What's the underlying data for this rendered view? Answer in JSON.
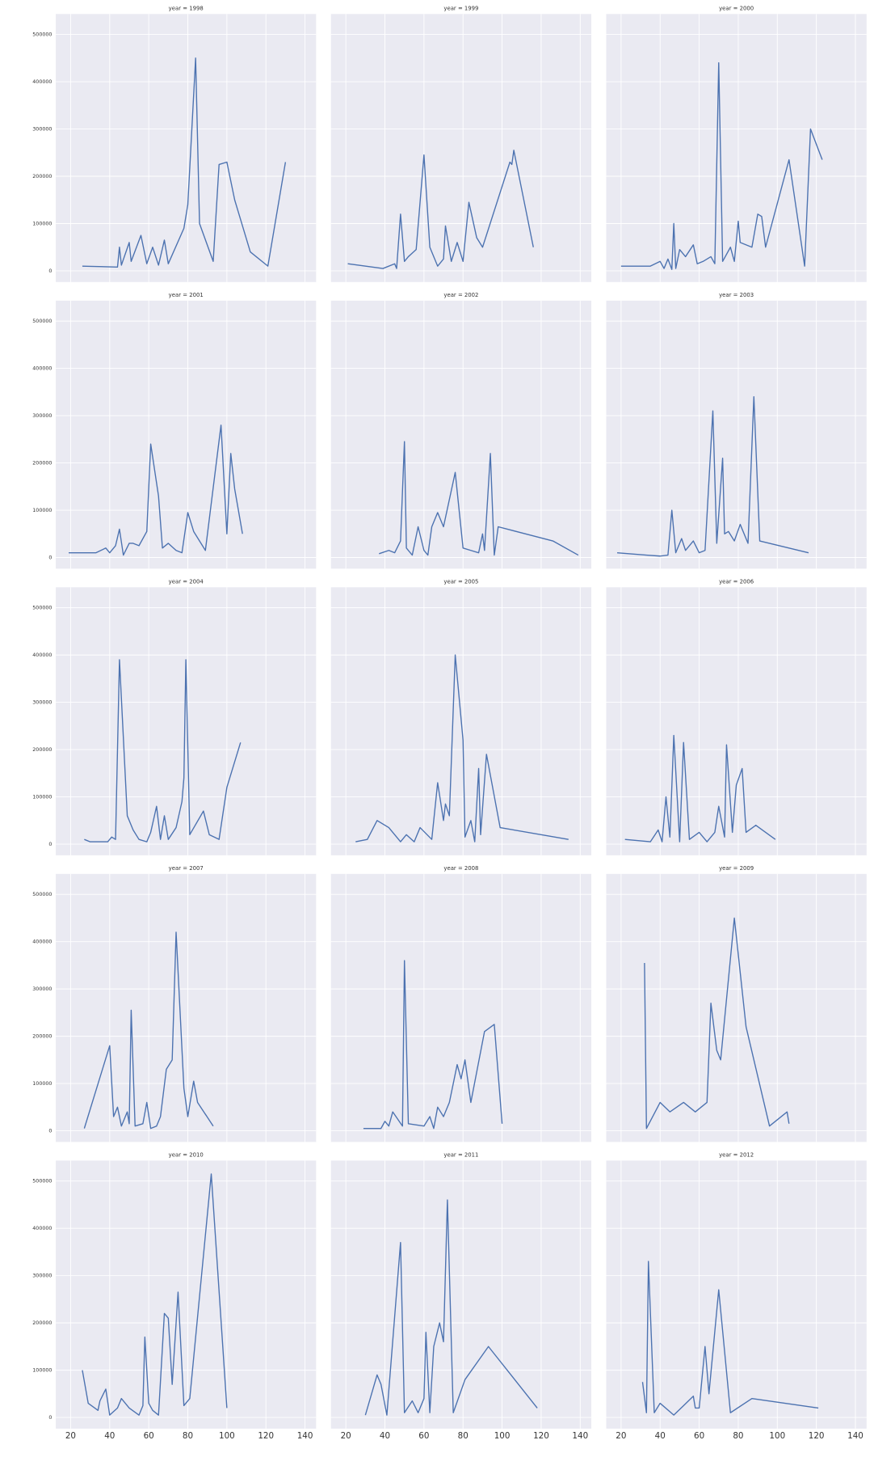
{
  "chart_data": [
    {
      "type": "line",
      "title": "year = 1998",
      "color": "#4c72b0",
      "xlim": [
        12.4,
        145.7
      ],
      "ylim": [
        -23600,
        543300
      ],
      "xticks": [
        20,
        40,
        60,
        80,
        100,
        120,
        140
      ],
      "yticks": [
        0,
        100000,
        200000,
        300000,
        400000,
        500000
      ],
      "grid": true,
      "x": [
        26,
        44,
        45,
        46,
        50,
        51,
        56,
        59,
        62,
        65,
        68,
        70,
        78,
        80,
        84,
        86,
        93,
        96,
        100,
        104,
        112,
        121,
        130
      ],
      "values": [
        10000,
        8000,
        50000,
        12000,
        60000,
        20000,
        75000,
        15000,
        50000,
        12000,
        65000,
        15000,
        90000,
        140000,
        450000,
        100000,
        20000,
        225000,
        230000,
        150000,
        40000,
        10000,
        230000
      ]
    },
    {
      "type": "line",
      "title": "year = 1999",
      "color": "#4c72b0",
      "xlim": [
        12.4,
        145.7
      ],
      "ylim": [
        -23600,
        543300
      ],
      "xticks": [
        20,
        40,
        60,
        80,
        100,
        120,
        140
      ],
      "yticks": [
        0,
        100000,
        200000,
        300000,
        400000,
        500000
      ],
      "grid": true,
      "x": [
        21,
        39,
        45,
        46,
        48,
        50,
        52,
        56,
        60,
        63,
        67,
        70,
        71,
        74,
        77,
        80,
        83,
        87,
        90,
        104,
        105,
        106,
        116
      ],
      "values": [
        15000,
        5000,
        15000,
        5000,
        120000,
        20000,
        30000,
        45000,
        245000,
        50000,
        10000,
        25000,
        95000,
        20000,
        60000,
        20000,
        145000,
        70000,
        50000,
        230000,
        225000,
        255000,
        50000
      ]
    },
    {
      "type": "line",
      "title": "year = 2000",
      "color": "#4c72b0",
      "xlim": [
        12.4,
        145.7
      ],
      "ylim": [
        -23600,
        543300
      ],
      "xticks": [
        20,
        40,
        60,
        80,
        100,
        120,
        140
      ],
      "yticks": [
        0,
        100000,
        200000,
        300000,
        400000,
        500000
      ],
      "grid": true,
      "x": [
        20,
        35,
        40,
        42,
        44,
        46,
        47,
        48,
        50,
        53,
        57,
        59,
        62,
        66,
        68,
        70,
        72,
        76,
        78,
        80,
        81,
        87,
        90,
        92,
        94,
        106,
        114,
        117,
        123
      ],
      "values": [
        10000,
        10000,
        20000,
        5000,
        25000,
        3000,
        100000,
        5000,
        45000,
        30000,
        55000,
        15000,
        20000,
        30000,
        15000,
        440000,
        20000,
        50000,
        20000,
        105000,
        60000,
        50000,
        120000,
        115000,
        50000,
        235000,
        10000,
        300000,
        235000
      ]
    },
    {
      "type": "line",
      "title": "year = 2001",
      "color": "#4c72b0",
      "xlim": [
        12.4,
        145.7
      ],
      "ylim": [
        -23600,
        543300
      ],
      "xticks": [
        20,
        40,
        60,
        80,
        100,
        120,
        140
      ],
      "yticks": [
        0,
        100000,
        200000,
        300000,
        400000,
        500000
      ],
      "grid": true,
      "x": [
        19,
        33,
        38,
        40,
        43,
        45,
        47,
        50,
        52,
        55,
        59,
        61,
        65,
        67,
        70,
        74,
        77,
        80,
        83,
        89,
        97,
        100,
        102,
        104,
        108
      ],
      "values": [
        10000,
        10000,
        20000,
        10000,
        25000,
        60000,
        5000,
        30000,
        30000,
        25000,
        55000,
        240000,
        130000,
        20000,
        30000,
        15000,
        10000,
        95000,
        55000,
        15000,
        280000,
        50000,
        220000,
        145000,
        50000
      ]
    },
    {
      "type": "line",
      "title": "year = 2002",
      "color": "#4c72b0",
      "xlim": [
        12.4,
        145.7
      ],
      "ylim": [
        -23600,
        543300
      ],
      "xticks": [
        20,
        40,
        60,
        80,
        100,
        120,
        140
      ],
      "yticks": [
        0,
        100000,
        200000,
        300000,
        400000,
        500000
      ],
      "grid": true,
      "x": [
        37,
        42,
        45,
        48,
        50,
        51,
        54,
        57,
        60,
        62,
        64,
        67,
        70,
        76,
        80,
        84,
        88,
        90,
        91,
        94,
        96,
        98,
        126,
        139
      ],
      "values": [
        8000,
        15000,
        10000,
        35000,
        245000,
        20000,
        5000,
        65000,
        15000,
        5000,
        65000,
        95000,
        65000,
        180000,
        20000,
        15000,
        10000,
        50000,
        15000,
        220000,
        5000,
        65000,
        35000,
        5000
      ]
    },
    {
      "type": "line",
      "title": "year = 2003",
      "color": "#4c72b0",
      "xlim": [
        12.4,
        145.7
      ],
      "ylim": [
        -23600,
        543300
      ],
      "xticks": [
        20,
        40,
        60,
        80,
        100,
        120,
        140
      ],
      "yticks": [
        0,
        100000,
        200000,
        300000,
        400000,
        500000
      ],
      "grid": true,
      "x": [
        18,
        33,
        40,
        44,
        46,
        48,
        51,
        53,
        57,
        60,
        63,
        67,
        69,
        72,
        73,
        75,
        78,
        81,
        85,
        88,
        91,
        116
      ],
      "values": [
        10000,
        5000,
        3000,
        5000,
        100000,
        10000,
        40000,
        15000,
        35000,
        10000,
        15000,
        310000,
        30000,
        210000,
        50000,
        55000,
        35000,
        70000,
        30000,
        340000,
        35000,
        10000
      ]
    },
    {
      "type": "line",
      "title": "year = 2004",
      "color": "#4c72b0",
      "xlim": [
        12.4,
        145.7
      ],
      "ylim": [
        -23600,
        543300
      ],
      "xticks": [
        20,
        40,
        60,
        80,
        100,
        120,
        140
      ],
      "yticks": [
        0,
        100000,
        200000,
        300000,
        400000,
        500000
      ],
      "grid": true,
      "x": [
        27,
        30,
        39,
        41,
        43,
        45,
        49,
        52,
        55,
        59,
        61,
        64,
        66,
        68,
        70,
        74,
        77,
        78,
        79,
        81,
        88,
        91,
        96,
        100,
        107
      ],
      "values": [
        10000,
        5000,
        5000,
        15000,
        10000,
        390000,
        60000,
        30000,
        10000,
        5000,
        25000,
        80000,
        10000,
        60000,
        10000,
        35000,
        90000,
        140000,
        390000,
        20000,
        70000,
        20000,
        10000,
        120000,
        215000
      ]
    },
    {
      "type": "line",
      "title": "year = 2005",
      "color": "#4c72b0",
      "xlim": [
        12.4,
        145.7
      ],
      "ylim": [
        -23600,
        543300
      ],
      "xticks": [
        20,
        40,
        60,
        80,
        100,
        120,
        140
      ],
      "yticks": [
        0,
        100000,
        200000,
        300000,
        400000,
        500000
      ],
      "grid": true,
      "x": [
        25,
        31,
        36,
        42,
        45,
        48,
        51,
        55,
        58,
        64,
        67,
        70,
        71,
        73,
        76,
        80,
        81,
        84,
        86,
        88,
        89,
        92,
        99,
        134
      ],
      "values": [
        5000,
        10000,
        50000,
        35000,
        20000,
        5000,
        20000,
        5000,
        35000,
        10000,
        130000,
        50000,
        85000,
        60000,
        400000,
        220000,
        15000,
        50000,
        5000,
        160000,
        20000,
        190000,
        35000,
        10000
      ]
    },
    {
      "type": "line",
      "title": "year = 2006",
      "color": "#4c72b0",
      "xlim": [
        12.4,
        145.7
      ],
      "ylim": [
        -23600,
        543300
      ],
      "xticks": [
        20,
        40,
        60,
        80,
        100,
        120,
        140
      ],
      "yticks": [
        0,
        100000,
        200000,
        300000,
        400000,
        500000
      ],
      "grid": true,
      "x": [
        22,
        35,
        39,
        41,
        43,
        45,
        47,
        50,
        52,
        55,
        60,
        64,
        68,
        70,
        73,
        74,
        77,
        79,
        82,
        84,
        89,
        99
      ],
      "values": [
        10000,
        5000,
        30000,
        5000,
        100000,
        15000,
        230000,
        5000,
        215000,
        10000,
        25000,
        5000,
        25000,
        80000,
        15000,
        210000,
        25000,
        125000,
        160000,
        25000,
        40000,
        10000
      ]
    },
    {
      "type": "line",
      "title": "year = 2007",
      "color": "#4c72b0",
      "xlim": [
        12.4,
        145.7
      ],
      "ylim": [
        -23600,
        543300
      ],
      "xticks": [
        20,
        40,
        60,
        80,
        100,
        120,
        140
      ],
      "yticks": [
        0,
        100000,
        200000,
        300000,
        400000,
        500000
      ],
      "grid": true,
      "x": [
        27,
        40,
        42,
        44,
        46,
        49,
        50,
        51,
        53,
        57,
        59,
        61,
        64,
        66,
        69,
        72,
        74,
        78,
        80,
        83,
        85,
        93
      ],
      "values": [
        5000,
        180000,
        30000,
        50000,
        10000,
        40000,
        15000,
        255000,
        10000,
        15000,
        60000,
        5000,
        10000,
        30000,
        130000,
        150000,
        420000,
        90000,
        30000,
        105000,
        60000,
        10000
      ]
    },
    {
      "type": "line",
      "title": "year = 2008",
      "color": "#4c72b0",
      "xlim": [
        12.4,
        145.7
      ],
      "ylim": [
        -23600,
        543300
      ],
      "xticks": [
        20,
        40,
        60,
        80,
        100,
        120,
        140
      ],
      "yticks": [
        0,
        100000,
        200000,
        300000,
        400000,
        500000
      ],
      "grid": true,
      "x": [
        29,
        38,
        40,
        42,
        44,
        49,
        50,
        52,
        60,
        63,
        65,
        67,
        70,
        73,
        77,
        79,
        81,
        84,
        91,
        96,
        100
      ],
      "values": [
        5000,
        5000,
        20000,
        10000,
        40000,
        10000,
        360000,
        15000,
        10000,
        30000,
        5000,
        50000,
        30000,
        60000,
        140000,
        110000,
        150000,
        60000,
        210000,
        225000,
        15000
      ]
    },
    {
      "type": "line",
      "title": "year = 2009",
      "color": "#4c72b0",
      "xlim": [
        12.4,
        145.7
      ],
      "ylim": [
        -23600,
        543300
      ],
      "xticks": [
        20,
        40,
        60,
        80,
        100,
        120,
        140
      ],
      "yticks": [
        0,
        100000,
        200000,
        300000,
        400000,
        500000
      ],
      "grid": true,
      "x": [
        32,
        33,
        40,
        45,
        52,
        58,
        64,
        66,
        69,
        71,
        78,
        84,
        96,
        105,
        106
      ],
      "values": [
        355000,
        5000,
        60000,
        40000,
        60000,
        40000,
        60000,
        270000,
        170000,
        150000,
        450000,
        220000,
        10000,
        40000,
        15000
      ]
    },
    {
      "type": "line",
      "title": "year = 2010",
      "color": "#4c72b0",
      "xlim": [
        12.4,
        145.7
      ],
      "ylim": [
        -23600,
        543300
      ],
      "xticks": [
        20,
        40,
        60,
        80,
        100,
        120,
        140
      ],
      "yticks": [
        0,
        100000,
        200000,
        300000,
        400000,
        500000
      ],
      "grid": true,
      "x": [
        26,
        29,
        34,
        35,
        38,
        40,
        44,
        46,
        50,
        55,
        57,
        58,
        60,
        62,
        65,
        68,
        70,
        72,
        75,
        78,
        81,
        92,
        100
      ],
      "values": [
        100000,
        30000,
        15000,
        35000,
        60000,
        5000,
        20000,
        40000,
        20000,
        5000,
        25000,
        170000,
        30000,
        15000,
        5000,
        220000,
        210000,
        70000,
        265000,
        25000,
        40000,
        515000,
        20000
      ]
    },
    {
      "type": "line",
      "title": "year = 2011",
      "color": "#4c72b0",
      "xlim": [
        12.4,
        145.7
      ],
      "ylim": [
        -23600,
        543300
      ],
      "xticks": [
        20,
        40,
        60,
        80,
        100,
        120,
        140
      ],
      "yticks": [
        0,
        100000,
        200000,
        300000,
        400000,
        500000
      ],
      "grid": true,
      "x": [
        30,
        36,
        38,
        41,
        48,
        50,
        54,
        57,
        60,
        61,
        63,
        65,
        68,
        70,
        72,
        75,
        81,
        93,
        118
      ],
      "values": [
        5000,
        90000,
        70000,
        5000,
        370000,
        10000,
        35000,
        10000,
        40000,
        180000,
        10000,
        150000,
        200000,
        160000,
        460000,
        10000,
        80000,
        150000,
        20000
      ]
    },
    {
      "type": "line",
      "title": "year = 2012",
      "color": "#4c72b0",
      "xlim": [
        12.4,
        145.7
      ],
      "ylim": [
        -23600,
        543300
      ],
      "xticks": [
        20,
        40,
        60,
        80,
        100,
        120,
        140
      ],
      "yticks": [
        0,
        100000,
        200000,
        300000,
        400000,
        500000
      ],
      "grid": true,
      "x": [
        31,
        33,
        34,
        37,
        40,
        47,
        52,
        57,
        58,
        60,
        63,
        65,
        70,
        76,
        87,
        121
      ],
      "values": [
        75000,
        10000,
        330000,
        10000,
        30000,
        5000,
        25000,
        45000,
        20000,
        20000,
        150000,
        50000,
        270000,
        10000,
        40000,
        20000
      ]
    }
  ]
}
